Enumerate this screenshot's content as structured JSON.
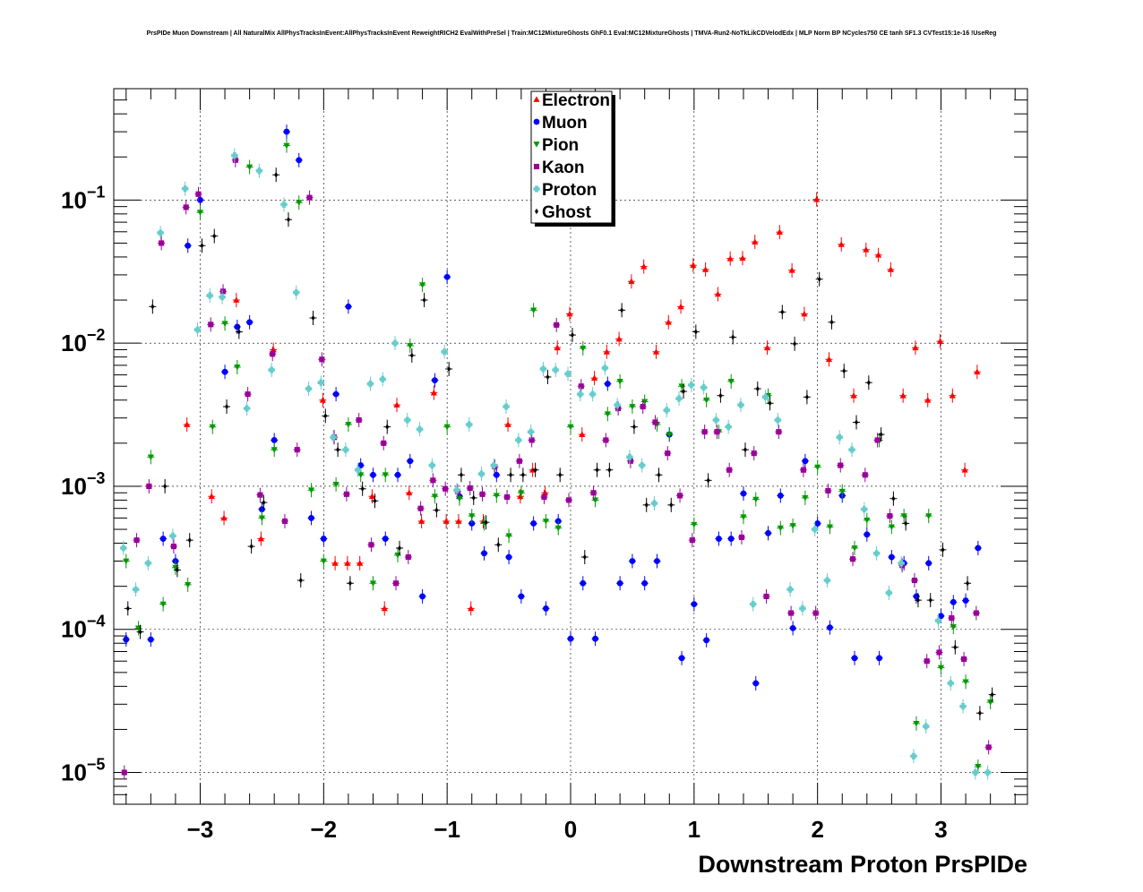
{
  "chart_data": {
    "type": "scatter",
    "title": "PrsPIDe Muon Downstream | All NaturalMix AllPhysTracksInEvent:AllPhysTracksInEvent ReweightRICH2 EvalWithPreSel | Train:MC12MixtureGhosts GhF0.1 Eval:MC12MixtureGhosts | TMVA-Run2-NoTkLikCDVelodEdx | MLP Norm BP NCycles750 CE tanh SF1.3 CVTest15:1e-16 !UseReg",
    "xlabel": "Downstream Proton PrsPIDe",
    "ylabel": "",
    "xlim": [
      -3.7,
      3.7
    ],
    "ylim": [
      6e-06,
      0.6
    ],
    "y_scale": "log",
    "grid": true,
    "legend_position": "top-center",
    "x_ticks": [
      {
        "value": -3,
        "label": "−3"
      },
      {
        "value": -2,
        "label": "−2"
      },
      {
        "value": -1,
        "label": "−1"
      },
      {
        "value": 0,
        "label": "0"
      },
      {
        "value": 1,
        "label": "1"
      },
      {
        "value": 2,
        "label": "2"
      },
      {
        "value": 3,
        "label": "3"
      }
    ],
    "y_ticks": [
      {
        "value": 1e-05,
        "base": "10",
        "exp": "−5"
      },
      {
        "value": 0.0001,
        "base": "10",
        "exp": "−4"
      },
      {
        "value": 0.001,
        "base": "10",
        "exp": "−3"
      },
      {
        "value": 0.01,
        "base": "10",
        "exp": "−2"
      },
      {
        "value": 0.1,
        "base": "10",
        "exp": "−1"
      }
    ],
    "series": [
      {
        "name": "Electron",
        "color": "#ff0000",
        "marker": "triangle-up",
        "x": [
          -3.1,
          -2.9,
          -2.8,
          -2.7,
          -2.5,
          -2.4,
          -2.0,
          -1.9,
          -1.8,
          -1.7,
          -1.6,
          -1.5,
          -1.4,
          -1.3,
          -1.2,
          -1.1,
          -1.0,
          -0.9,
          -0.8,
          -0.7,
          -0.5,
          -0.4,
          -0.3,
          -0.2,
          -0.1,
          0.0,
          0.1,
          0.2,
          0.3,
          0.4,
          0.5,
          0.6,
          0.7,
          0.8,
          0.9,
          1.0,
          1.1,
          1.2,
          1.3,
          1.4,
          1.5,
          1.6,
          1.7,
          1.8,
          1.9,
          2.0,
          2.1,
          2.2,
          2.3,
          2.4,
          2.5,
          2.6,
          2.7,
          2.8,
          2.9,
          3.0,
          3.1,
          3.2,
          3.3
        ],
        "y": [
          0.0027,
          0.00085,
          0.0006,
          0.02,
          0.00043,
          0.009,
          0.004,
          0.00029,
          0.00029,
          0.00029,
          0.00085,
          0.00014,
          0.0037,
          0.0009,
          0.00057,
          0.0045,
          0.00057,
          0.00057,
          0.00014,
          0.00057,
          0.0027,
          0.00085,
          0.0013,
          0.0009,
          0.0093,
          0.016,
          0.0023,
          0.0057,
          0.0087,
          0.0107,
          0.027,
          0.0343,
          0.0087,
          0.014,
          0.018,
          0.035,
          0.0327,
          0.022,
          0.039,
          0.0393,
          0.051,
          0.0093,
          0.0597,
          0.0323,
          0.016,
          0.101,
          0.0077,
          0.049,
          0.0043,
          0.045,
          0.0413,
          0.0327,
          0.0043,
          0.0093,
          0.004,
          0.0103,
          0.0043,
          0.0013,
          0.0063
        ]
      },
      {
        "name": "Muon",
        "color": "#0000ff",
        "marker": "circle",
        "x": [
          -3.6,
          -3.4,
          -3.3,
          -3.2,
          -3.1,
          -3.0,
          -2.8,
          -2.7,
          -2.6,
          -2.5,
          -2.4,
          -2.3,
          -2.2,
          -2.1,
          -2.0,
          -1.9,
          -1.8,
          -1.7,
          -1.6,
          -1.5,
          -1.4,
          -1.3,
          -1.2,
          -1.1,
          -1.0,
          -0.9,
          -0.8,
          -0.7,
          -0.6,
          -0.5,
          -0.4,
          -0.3,
          -0.2,
          -0.1,
          0.0,
          0.1,
          0.2,
          0.3,
          0.4,
          0.5,
          0.6,
          0.7,
          0.8,
          0.9,
          1.0,
          1.1,
          1.2,
          1.3,
          1.4,
          1.5,
          1.6,
          1.7,
          1.8,
          1.9,
          2.0,
          2.1,
          2.2,
          2.3,
          2.4,
          2.5,
          2.6,
          2.7,
          2.8,
          2.9,
          3.0,
          3.1,
          3.2,
          3.3
        ],
        "y": [
          8.5e-05,
          8.5e-05,
          0.00043,
          0.0003,
          0.048,
          0.1,
          0.0063,
          0.013,
          0.014,
          0.00069,
          0.0021,
          0.3,
          0.19,
          0.0006,
          0.00043,
          0.0044,
          0.018,
          0.0014,
          0.0012,
          0.00043,
          0.0012,
          0.0015,
          0.00017,
          0.0055,
          0.029,
          0.00085,
          0.00055,
          0.00034,
          0.0012,
          0.00032,
          0.00017,
          0.00055,
          0.00014,
          0.00057,
          8.6e-05,
          0.00021,
          8.6e-05,
          0.0052,
          0.00021,
          0.0003,
          0.00021,
          0.0003,
          0.0023,
          6.3e-05,
          0.00015,
          8.4e-05,
          0.00043,
          0.00043,
          0.00089,
          4.2e-05,
          0.00047,
          0.00086,
          0.000102,
          0.0015,
          0.00055,
          0.000103,
          0.00086,
          6.3e-05,
          0.00046,
          6.3e-05,
          0.00032,
          0.00029,
          0.00017,
          0.00029,
          0.000124,
          0.000155,
          0.000159,
          0.00037
        ]
      },
      {
        "name": "Pion",
        "color": "#009900",
        "marker": "triangle-down",
        "x": [
          -3.6,
          -3.5,
          -3.4,
          -3.3,
          -3.2,
          -3.1,
          -3.0,
          -2.9,
          -2.8,
          -2.7,
          -2.6,
          -2.5,
          -2.4,
          -2.3,
          -2.2,
          -2.1,
          -2.0,
          -1.9,
          -1.8,
          -1.7,
          -1.6,
          -1.5,
          -1.4,
          -1.3,
          -1.2,
          -1.1,
          -1.0,
          -0.9,
          -0.8,
          -0.7,
          -0.6,
          -0.5,
          -0.4,
          -0.3,
          -0.2,
          -0.1,
          0.0,
          0.1,
          0.2,
          0.3,
          0.4,
          0.5,
          0.6,
          0.7,
          0.8,
          0.9,
          1.0,
          1.1,
          1.2,
          1.3,
          1.4,
          1.5,
          1.6,
          1.7,
          1.8,
          1.9,
          2.0,
          2.1,
          2.2,
          2.3,
          2.4,
          2.5,
          2.6,
          2.7,
          2.8,
          2.9,
          3.0,
          3.1,
          3.2,
          3.3,
          3.4
        ],
        "y": [
          0.0003,
          0.000102,
          0.0016,
          0.00015,
          0.00027,
          0.000205,
          0.082,
          0.0026,
          0.0137,
          0.0068,
          0.17,
          0.0006,
          0.0018,
          0.24,
          0.096,
          0.00094,
          0.0003,
          0.00103,
          0.0027,
          0.0012,
          0.00021,
          0.0012,
          0.00033,
          0.0096,
          0.0255,
          0.00085,
          0.0026,
          0.00082,
          0.00062,
          0.00055,
          0.00086,
          0.00045,
          0.0009,
          0.017,
          0.00057,
          0.00051,
          0.0026,
          0.0092,
          0.0008,
          0.0032,
          0.0054,
          0.0036,
          0.0039,
          0.0027,
          0.0023,
          0.005,
          0.00054,
          0.004,
          0.0024,
          0.0054,
          0.00061,
          0.00081,
          0.0043,
          0.00051,
          0.00053,
          0.00083,
          0.00136,
          0.00052,
          0.00092,
          0.00037,
          0.00058,
          0.0021,
          0.00052,
          0.00062,
          2.2e-05,
          0.00062,
          5.4e-05,
          0.000104,
          4.3e-05,
          1.1e-05,
          3.1e-05
        ]
      },
      {
        "name": "Kaon",
        "color": "#990099",
        "marker": "square",
        "x": [
          -3.6,
          -3.5,
          -3.4,
          -3.3,
          -3.2,
          -3.1,
          -3.0,
          -2.9,
          -2.8,
          -2.7,
          -2.6,
          -2.5,
          -2.4,
          -2.3,
          -2.2,
          -2.1,
          -2.0,
          -1.9,
          -1.8,
          -1.7,
          -1.6,
          -1.5,
          -1.4,
          -1.3,
          -1.2,
          -1.1,
          -1.0,
          -0.9,
          -0.8,
          -0.7,
          -0.6,
          -0.5,
          -0.4,
          -0.3,
          -0.2,
          -0.1,
          0.0,
          0.1,
          0.2,
          0.3,
          0.4,
          0.5,
          0.6,
          0.7,
          0.8,
          0.9,
          1.0,
          1.1,
          1.2,
          1.3,
          1.4,
          1.5,
          1.6,
          1.7,
          1.8,
          1.9,
          2.0,
          2.1,
          2.2,
          2.3,
          2.4,
          2.5,
          2.6,
          2.7,
          2.8,
          2.9,
          3.0,
          3.1,
          3.2,
          3.3,
          3.4
        ],
        "y": [
          1e-05,
          0.00042,
          0.001,
          0.05,
          0.00038,
          0.089,
          0.11,
          0.0135,
          0.023,
          0.19,
          0.0044,
          0.00087,
          0.0084,
          0.00057,
          0.0018,
          0.104,
          0.0077,
          0.0022,
          0.00088,
          0.0029,
          0.00039,
          0.002,
          0.00021,
          0.00032,
          0.0007,
          0.0011,
          0.00096,
          0.00092,
          0.00097,
          0.00088,
          0.00137,
          0.00084,
          0.0015,
          0.0021,
          0.00084,
          0.0134,
          0.0008,
          0.005,
          0.0009,
          0.0021,
          0.0035,
          0.0015,
          0.0036,
          0.0028,
          0.0017,
          0.00086,
          0.00042,
          0.0024,
          0.0024,
          0.0013,
          0.00044,
          0.0017,
          0.00017,
          0.0024,
          0.00013,
          0.0013,
          0.00013,
          0.00093,
          0.0014,
          0.00031,
          0.0012,
          0.0021,
          0.00062,
          0.00028,
          0.00022,
          6e-05,
          6.9e-05,
          0.00012,
          6.2e-05,
          0.00013,
          1.5e-05
        ]
      },
      {
        "name": "Proton",
        "color": "#66cccc",
        "marker": "cross",
        "x": [
          -3.6,
          -3.5,
          -3.4,
          -3.3,
          -3.2,
          -3.1,
          -3.0,
          -2.9,
          -2.8,
          -2.7,
          -2.6,
          -2.5,
          -2.4,
          -2.3,
          -2.2,
          -2.1,
          -2.0,
          -1.9,
          -1.8,
          -1.7,
          -1.6,
          -1.5,
          -1.4,
          -1.3,
          -1.2,
          -1.1,
          -1.0,
          -0.9,
          -0.8,
          -0.7,
          -0.6,
          -0.5,
          -0.4,
          -0.3,
          -0.2,
          -0.1,
          0.0,
          0.1,
          0.2,
          0.3,
          0.4,
          0.5,
          0.6,
          0.7,
          0.8,
          0.9,
          1.0,
          1.1,
          1.2,
          1.3,
          1.4,
          1.5,
          1.6,
          1.7,
          1.8,
          1.9,
          2.0,
          2.1,
          2.2,
          2.3,
          2.4,
          2.5,
          2.6,
          2.7,
          2.8,
          2.9,
          3.0,
          3.1,
          3.2,
          3.3,
          3.4
        ],
        "y": [
          0.00037,
          0.00019,
          0.00029,
          0.059,
          0.00045,
          0.12,
          0.0124,
          0.0215,
          0.021,
          0.205,
          0.0035,
          0.16,
          0.0065,
          0.093,
          0.0226,
          0.0048,
          0.0053,
          0.0022,
          0.0018,
          0.0013,
          0.0052,
          0.0056,
          0.01,
          0.0029,
          0.0025,
          0.0014,
          0.0087,
          0.00094,
          0.0027,
          0.00122,
          0.0014,
          0.0036,
          0.0021,
          0.0024,
          0.0066,
          0.0065,
          0.0061,
          0.0044,
          0.0044,
          0.0067,
          0.0037,
          0.0016,
          0.0014,
          0.00076,
          0.0034,
          0.0041,
          0.0051,
          0.0049,
          0.0029,
          0.0026,
          0.0037,
          0.00015,
          0.0042,
          0.0029,
          0.00019,
          0.00014,
          0.0005,
          0.00022,
          0.0022,
          0.0018,
          0.00069,
          0.00034,
          0.00018,
          0.00029,
          1.3e-05,
          2.1e-05,
          0.000115,
          4.2e-05,
          2.9e-05,
          1e-05,
          1e-05
        ]
      },
      {
        "name": "Ghost",
        "color": "#000000",
        "marker": "diamond",
        "x": [
          -3.6,
          -3.5,
          -3.4,
          -3.3,
          -3.2,
          -3.1,
          -3.0,
          -2.9,
          -2.8,
          -2.7,
          -2.6,
          -2.5,
          -2.4,
          -2.3,
          -2.2,
          -2.1,
          -2.0,
          -1.9,
          -1.8,
          -1.7,
          -1.6,
          -1.5,
          -1.4,
          -1.3,
          -1.2,
          -1.1,
          -1.0,
          -0.9,
          -0.8,
          -0.7,
          -0.6,
          -0.5,
          -0.4,
          -0.3,
          -0.2,
          -0.1,
          0.0,
          0.1,
          0.2,
          0.3,
          0.4,
          0.5,
          0.6,
          0.7,
          0.8,
          0.9,
          1.0,
          1.1,
          1.2,
          1.3,
          1.4,
          1.5,
          1.6,
          1.7,
          1.8,
          1.9,
          2.0,
          2.1,
          2.2,
          2.3,
          2.4,
          2.5,
          2.6,
          2.7,
          2.8,
          2.9,
          3.0,
          3.1,
          3.2,
          3.3,
          3.4
        ],
        "y": [
          0.00014,
          9.6e-05,
          0.018,
          0.001,
          0.00026,
          0.00042,
          0.048,
          0.056,
          0.0036,
          0.012,
          0.00038,
          0.00077,
          0.15,
          0.073,
          0.00022,
          0.015,
          0.0031,
          0.0018,
          0.00021,
          0.00096,
          0.00079,
          0.0026,
          0.00037,
          0.0082,
          0.02,
          0.00068,
          0.0066,
          0.0012,
          0.00083,
          0.00056,
          0.00039,
          0.0012,
          0.0012,
          0.0013,
          0.0058,
          0.0012,
          0.0114,
          0.00032,
          0.0013,
          0.0013,
          0.017,
          0.0026,
          0.00074,
          0.0012,
          0.00074,
          0.0046,
          0.012,
          0.0011,
          0.0043,
          0.011,
          0.0018,
          0.0048,
          0.0038,
          0.0165,
          0.0099,
          0.0042,
          0.028,
          0.014,
          0.0064,
          0.0028,
          0.0053,
          0.0023,
          0.00082,
          0.00055,
          0.00016,
          0.00016,
          0.00036,
          7.5e-05,
          0.00021,
          2.6e-05,
          3.5e-05
        ]
      }
    ]
  }
}
